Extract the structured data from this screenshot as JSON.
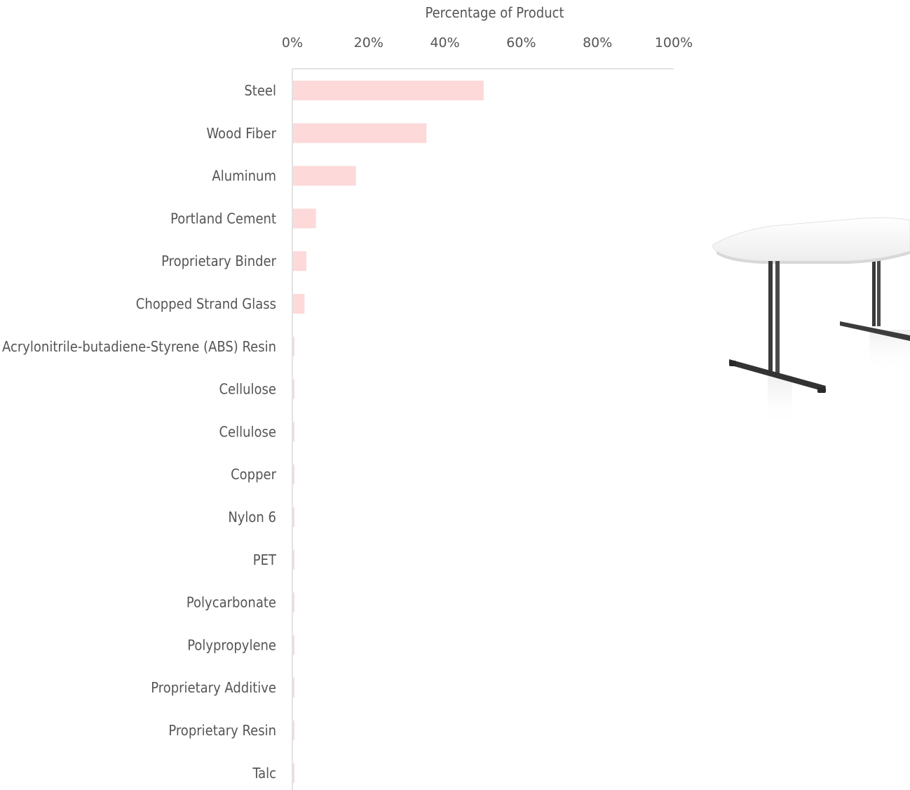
{
  "chart_data": {
    "type": "bar",
    "orientation": "horizontal",
    "xlabel": "Percentage of Product",
    "xlabel_position": "top",
    "xlim": [
      0,
      100
    ],
    "x_ticks": [
      "0%",
      "20%",
      "40%",
      "60%",
      "80%",
      "100%"
    ],
    "x_tick_values": [
      0,
      20,
      40,
      60,
      80,
      100
    ],
    "categories": [
      "Steel",
      "Wood Fiber",
      "Aluminum",
      "Portland Cement",
      "Proprietary Binder",
      "Chopped Strand Glass",
      "Acrylonitrile-butadiene-Styrene (ABS) Resin",
      "Cellulose",
      "Cellulose",
      "Copper",
      "Nylon 6",
      "PET",
      "Polycarbonate",
      "Polypropylene",
      "Proprietary Additive",
      "Proprietary Resin",
      "Talc"
    ],
    "values": [
      50,
      35,
      16.5,
      6,
      3.5,
      3,
      0.3,
      0.3,
      0.3,
      0.3,
      0.3,
      0.3,
      0.3,
      0.3,
      0.3,
      0.3,
      0.3
    ],
    "grid": false,
    "legend": "none"
  },
  "colors": {
    "bar": "#fdd9d9",
    "text": "#555555",
    "axis": "#d9d9d9"
  },
  "image": {
    "icon": "table-product-image"
  }
}
